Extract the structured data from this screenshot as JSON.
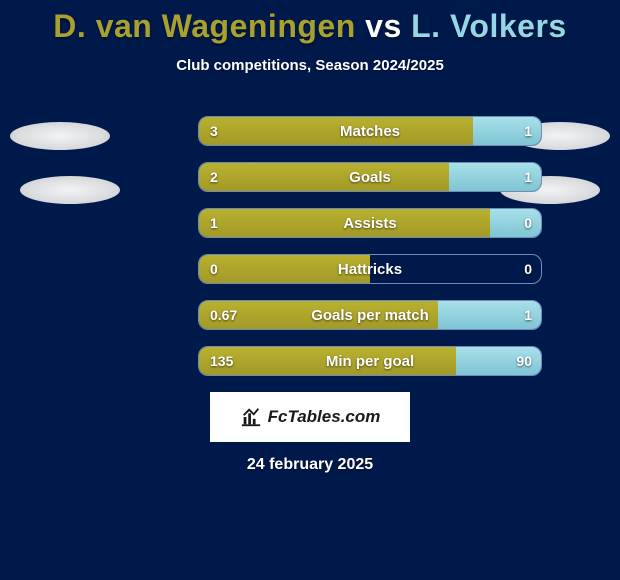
{
  "title": {
    "player1": "D. van Wageningen",
    "vs": "vs",
    "player2": "L. Volkers",
    "color_p1": "#a8a12e",
    "color_vs": "#ffffff",
    "color_p2": "#94d8e5",
    "fontsize": 32
  },
  "subtitle": "Club competitions, Season 2024/2025",
  "date": "24 february 2025",
  "brand": {
    "text": "FcTables.com"
  },
  "colors": {
    "background": "#00194b",
    "bar_left": "#a8a12e",
    "bar_right": "#94d8e5",
    "bar_border": "#6d8db8",
    "text": "#ffffff"
  },
  "bar": {
    "container_width": 344,
    "container_height": 30,
    "border_radius": 10,
    "row_gap": 16
  },
  "stats": [
    {
      "label": "Matches",
      "left_val": "3",
      "right_val": "1",
      "left_pct": 80,
      "right_pct": 20
    },
    {
      "label": "Goals",
      "left_val": "2",
      "right_val": "1",
      "left_pct": 73,
      "right_pct": 27
    },
    {
      "label": "Assists",
      "left_val": "1",
      "right_val": "0",
      "left_pct": 85,
      "right_pct": 15
    },
    {
      "label": "Hattricks",
      "left_val": "0",
      "right_val": "0",
      "left_pct": 50,
      "right_pct": 0
    },
    {
      "label": "Goals per match",
      "left_val": "0.67",
      "right_val": "1",
      "left_pct": 70,
      "right_pct": 30
    },
    {
      "label": "Min per goal",
      "left_val": "135",
      "right_val": "90",
      "left_pct": 75,
      "right_pct": 25
    }
  ]
}
